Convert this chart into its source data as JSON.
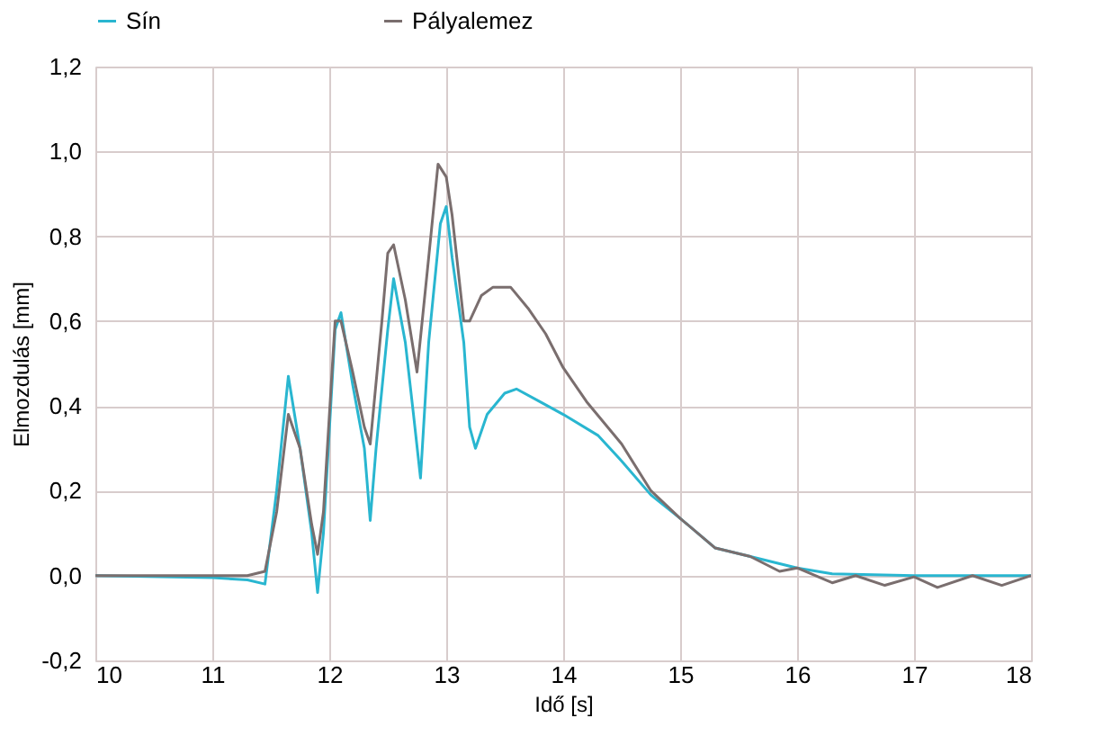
{
  "chart_data": {
    "type": "line",
    "xlabel": "Idő [s]",
    "ylabel": "Elmozdulás [mm]",
    "xlim": [
      10,
      18
    ],
    "xticks": [
      10,
      11,
      12,
      13,
      14,
      15,
      16,
      17,
      18
    ],
    "ylim": [
      -0.2,
      1.2
    ],
    "yticks": [
      {
        "value": -0.2,
        "label": "-0,2"
      },
      {
        "value": 0,
        "label": "0,0"
      },
      {
        "value": 0.2,
        "label": "0,2"
      },
      {
        "value": 0.4,
        "label": "0,4"
      },
      {
        "value": 0.6,
        "label": "0,6"
      },
      {
        "value": 0.8,
        "label": "0,8"
      },
      {
        "value": 1.0,
        "label": "1,0"
      },
      {
        "value": 1.2,
        "label": "1,2"
      }
    ],
    "grid": true,
    "legend": "top",
    "marker": "none",
    "line_style": "solid",
    "series": [
      {
        "name": "Sín",
        "color": "#29b6d0",
        "x": [
          10,
          11,
          11.3,
          11.45,
          11.55,
          11.65,
          11.75,
          11.85,
          11.9,
          11.95,
          12.05,
          12.1,
          12.2,
          12.3,
          12.35,
          12.4,
          12.5,
          12.55,
          12.65,
          12.72,
          12.78,
          12.85,
          12.95,
          13.0,
          13.05,
          13.15,
          13.2,
          13.25,
          13.35,
          13.5,
          13.6,
          13.8,
          14.0,
          14.3,
          14.5,
          14.75,
          15.0,
          15.3,
          15.6,
          16.0,
          16.3,
          17.0,
          18.0
        ],
        "values": [
          0,
          -0.005,
          -0.01,
          -0.02,
          0.2,
          0.47,
          0.3,
          0.1,
          -0.04,
          0.1,
          0.58,
          0.62,
          0.45,
          0.3,
          0.13,
          0.3,
          0.58,
          0.7,
          0.55,
          0.38,
          0.23,
          0.55,
          0.83,
          0.87,
          0.75,
          0.55,
          0.35,
          0.3,
          0.38,
          0.43,
          0.44,
          0.41,
          0.38,
          0.33,
          0.27,
          0.19,
          0.135,
          0.065,
          0.045,
          0.018,
          0.004,
          0,
          0
        ]
      },
      {
        "name": "Pályalemez",
        "color": "#7a6e6e",
        "x": [
          10,
          11.3,
          11.45,
          11.55,
          11.65,
          11.75,
          11.85,
          11.9,
          11.95,
          12.05,
          12.1,
          12.2,
          12.3,
          12.35,
          12.45,
          12.5,
          12.55,
          12.65,
          12.75,
          12.85,
          12.93,
          13.0,
          13.05,
          13.15,
          13.2,
          13.3,
          13.4,
          13.55,
          13.7,
          13.85,
          14.0,
          14.2,
          14.5,
          14.75,
          15.0,
          15.3,
          15.6,
          15.85,
          16.0,
          16.3,
          16.5,
          16.75,
          17.0,
          17.2,
          17.5,
          17.75,
          18.0
        ],
        "values": [
          0,
          0,
          0.01,
          0.15,
          0.38,
          0.3,
          0.12,
          0.05,
          0.15,
          0.6,
          0.6,
          0.48,
          0.35,
          0.31,
          0.6,
          0.76,
          0.78,
          0.65,
          0.48,
          0.75,
          0.97,
          0.94,
          0.85,
          0.6,
          0.6,
          0.66,
          0.68,
          0.68,
          0.63,
          0.57,
          0.49,
          0.41,
          0.31,
          0.2,
          0.135,
          0.065,
          0.045,
          0.01,
          0.018,
          -0.017,
          0,
          -0.023,
          -0.003,
          -0.028,
          0,
          -0.023,
          0
        ]
      }
    ]
  }
}
